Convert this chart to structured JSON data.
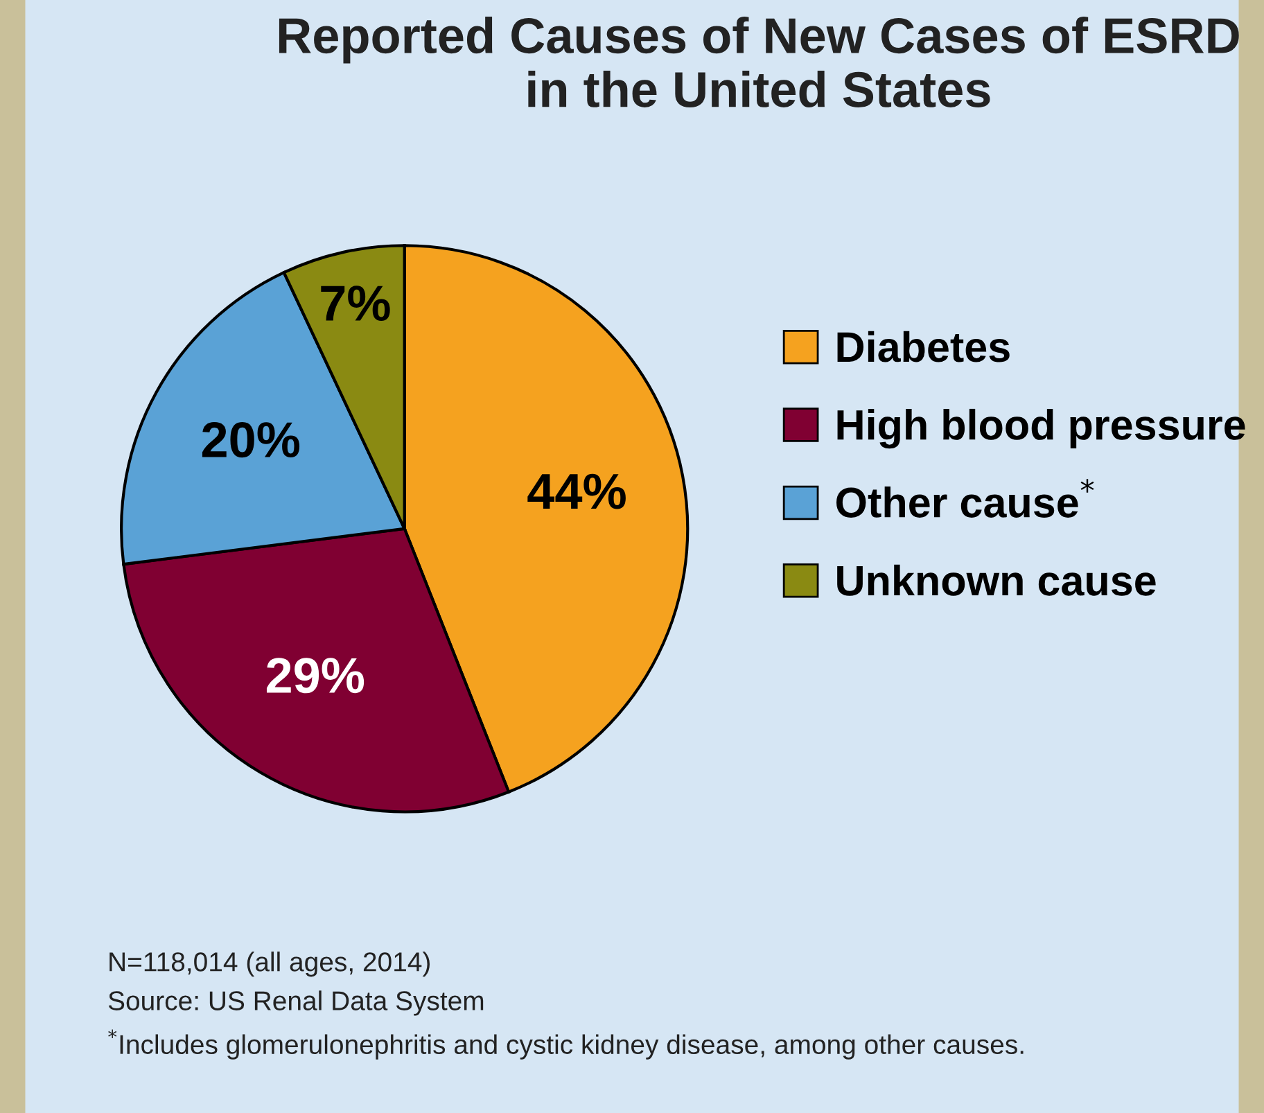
{
  "chart_data": {
    "type": "pie",
    "title": "Reported Causes of New Cases of ESRD\nin the United States",
    "categories": [
      "Diabetes",
      "High blood pressure",
      "Other cause$^{*}$",
      "Unknown cause"
    ],
    "values": [
      44,
      29,
      20,
      7
    ],
    "colors": [
      "#f5a21f",
      "#800032",
      "#5aa2d6",
      "#8a8a12"
    ],
    "value_labels": [
      "44%",
      "29%",
      "20%",
      "7%"
    ],
    "legend": "right",
    "annotations": [
      "N=118,014 (all ages, 2014)",
      "Source: US Renal Data System",
      "$^{*}$Includes glomerulonephritis and cystic kidney disease, among other causes."
    ]
  }
}
